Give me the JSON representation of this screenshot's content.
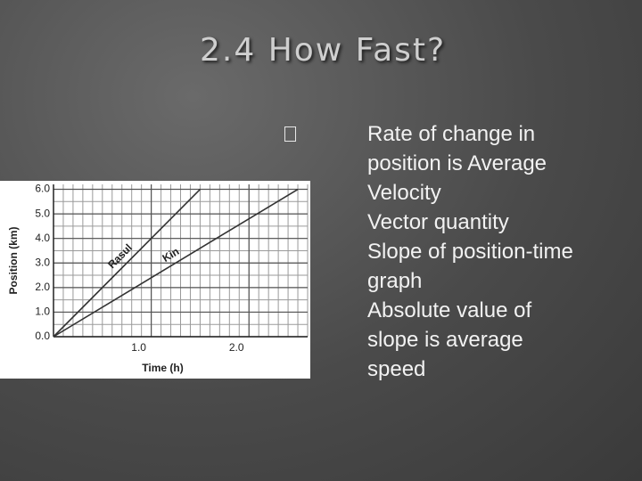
{
  "header": {
    "title": "2.4 How Fast?"
  },
  "bullets": [
    "Rate of change in position is Average Velocity",
    "Vector quantity",
    "Slope of position-time graph",
    "Absolute value of slope is average speed"
  ],
  "chart": {
    "type": "line",
    "y_label": "Position (km)",
    "x_label": "Time (h)",
    "xlim": [
      0,
      2.6
    ],
    "ylim": [
      0,
      6.2
    ],
    "xticks": [
      {
        "value": 1,
        "label": "1.0"
      },
      {
        "value": 2,
        "label": "2.0"
      }
    ],
    "yticks": [
      {
        "value": 0,
        "label": "0.0"
      },
      {
        "value": 1,
        "label": "1.0"
      },
      {
        "value": 2,
        "label": "2.0"
      },
      {
        "value": 3,
        "label": "3.0"
      },
      {
        "value": 4,
        "label": "4.0"
      },
      {
        "value": 5,
        "label": "5.0"
      },
      {
        "value": 6,
        "label": "6.0"
      }
    ],
    "grid": true,
    "series": [
      {
        "name": "Rasul",
        "color": "#333333",
        "x": [
          0,
          1.5
        ],
        "values": [
          0,
          6.0
        ]
      },
      {
        "name": "Kin",
        "color": "#333333",
        "x": [
          0,
          2.5
        ],
        "values": [
          0,
          6.0
        ]
      }
    ]
  }
}
